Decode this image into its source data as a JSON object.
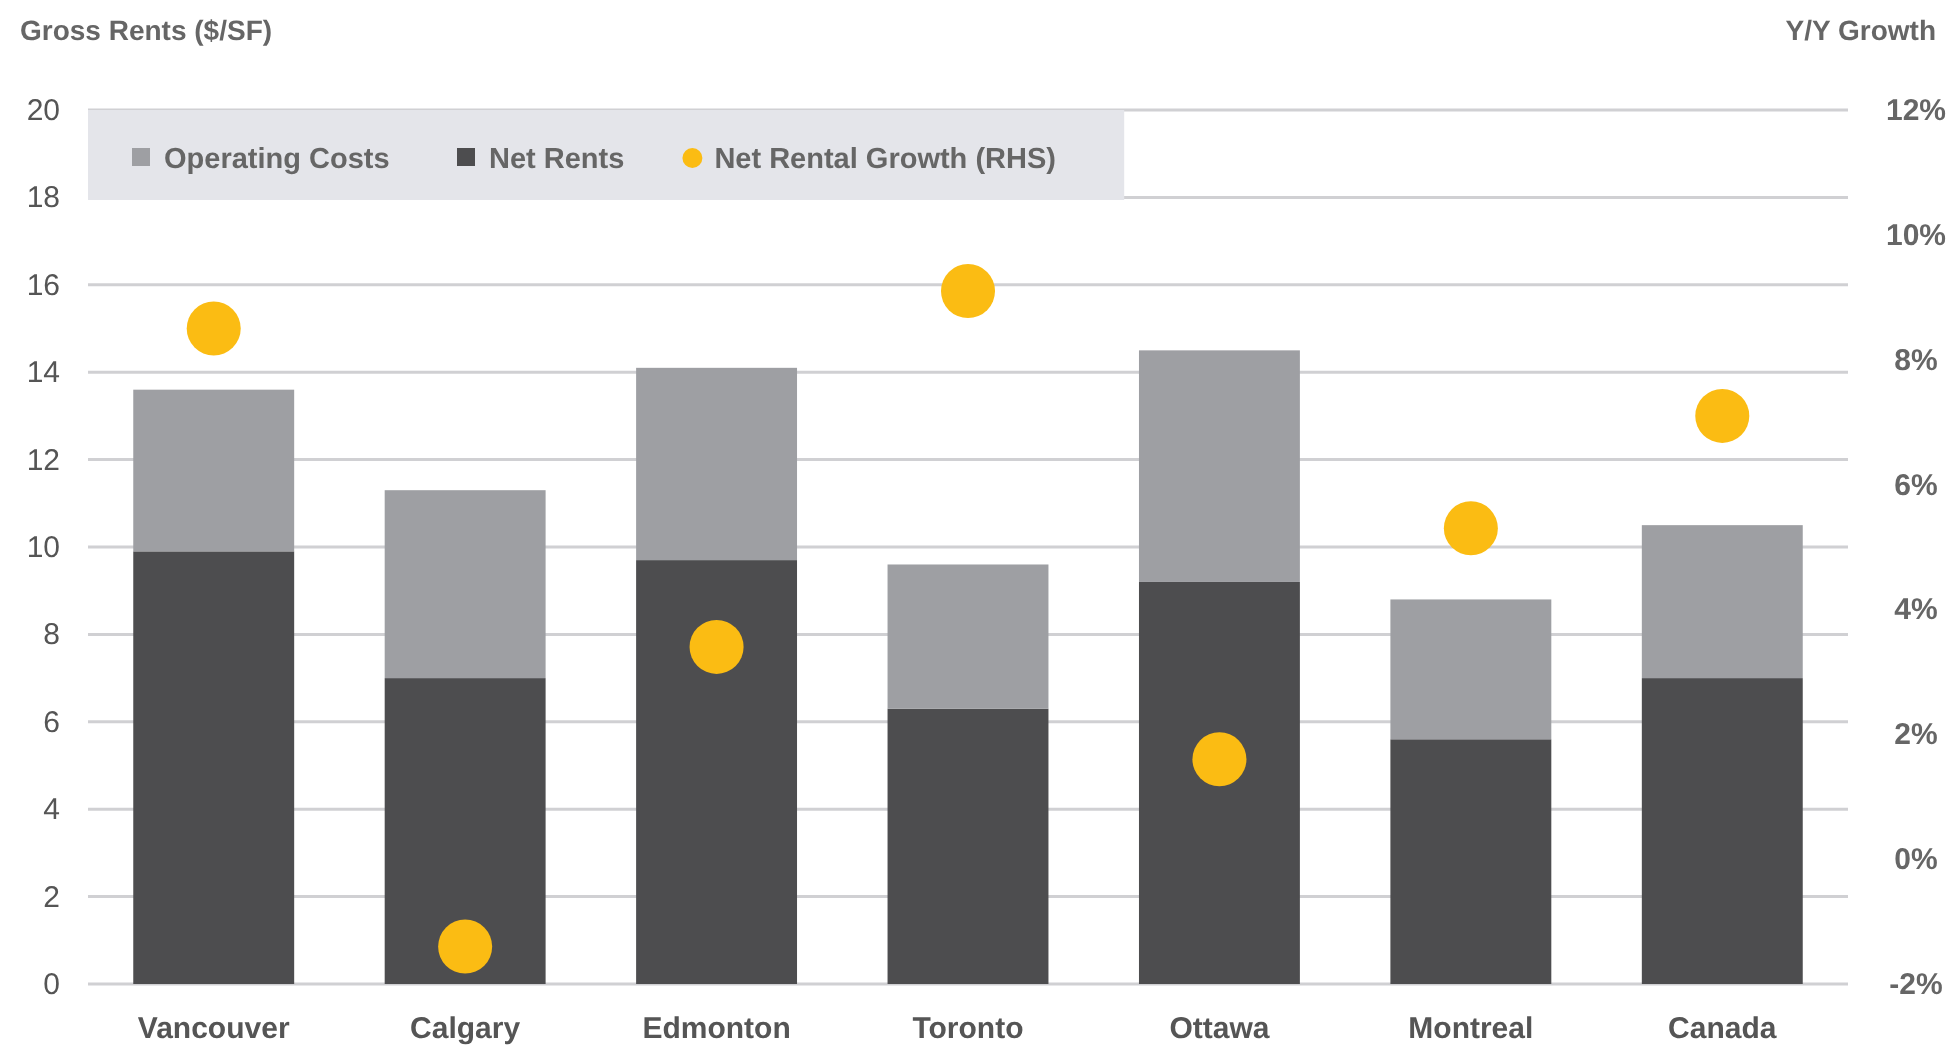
{
  "chart_data": {
    "type": "bar",
    "stacked": true,
    "ylabel": "Gross Rents ($/SF)",
    "y2label": "Y/Y Growth",
    "categories": [
      "Vancouver",
      "Calgary",
      "Edmonton",
      "Toronto",
      "Ottawa",
      "Montreal",
      "Canada"
    ],
    "series": [
      {
        "name": "Net Rents",
        "color": "#4d4d4f",
        "values": [
          9.9,
          7.0,
          9.7,
          6.3,
          9.2,
          5.6,
          7.0
        ]
      },
      {
        "name": "Operating Costs",
        "color": "#9e9fa3",
        "values": [
          3.7,
          4.3,
          4.4,
          3.3,
          5.3,
          3.2,
          3.5
        ]
      },
      {
        "name": "Net Rental Growth (RHS)",
        "type": "scatter",
        "axis": "y2",
        "color": "#fbbc13",
        "values": [
          8.5,
          -1.4,
          3.4,
          9.1,
          1.6,
          5.3,
          7.1
        ]
      }
    ],
    "ylim": [
      0,
      20
    ],
    "yticks": [
      0,
      2,
      4,
      6,
      8,
      10,
      12,
      14,
      16,
      18,
      20
    ],
    "y2lim": [
      -2,
      12
    ],
    "y2ticks": [
      {
        "value": -2,
        "label": "-2%"
      },
      {
        "value": 0,
        "label": "0%"
      },
      {
        "value": 2,
        "label": "2%"
      },
      {
        "value": 4,
        "label": "4%"
      },
      {
        "value": 6,
        "label": "6%"
      },
      {
        "value": 8,
        "label": "8%"
      },
      {
        "value": 10,
        "label": "10%"
      },
      {
        "value": 12,
        "label": "12%"
      }
    ],
    "grid": "y",
    "legend": "top left",
    "marker": "circle"
  }
}
